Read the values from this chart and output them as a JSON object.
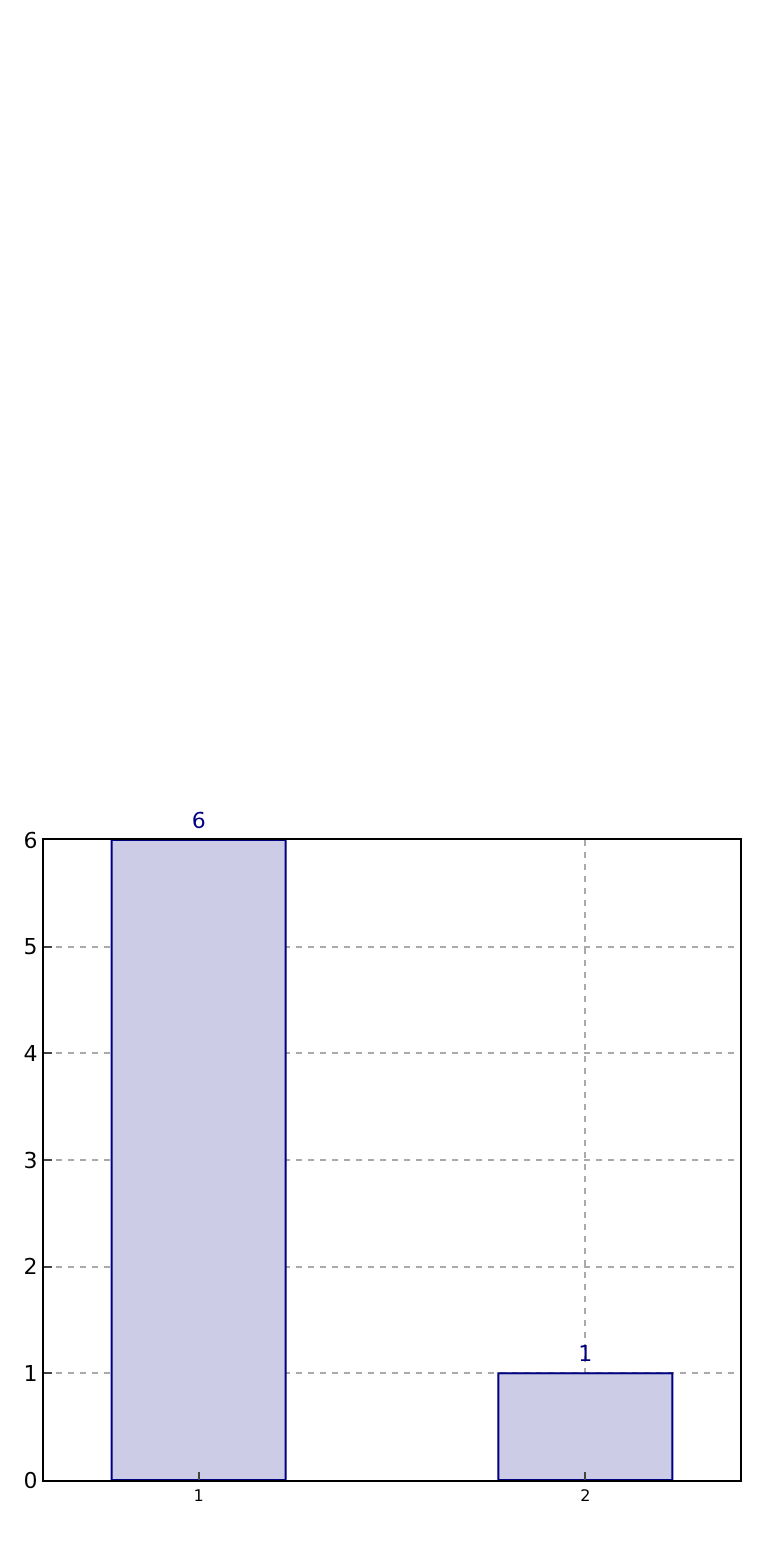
{
  "chart_data": {
    "type": "bar",
    "categories": [
      "1",
      "2"
    ],
    "values": [
      6,
      1
    ],
    "color": "#ccccE6",
    "ylim": [
      0,
      6
    ],
    "yticks": [
      0,
      1,
      2,
      3,
      4,
      5,
      6
    ],
    "grid": true,
    "data_labels": true
  }
}
